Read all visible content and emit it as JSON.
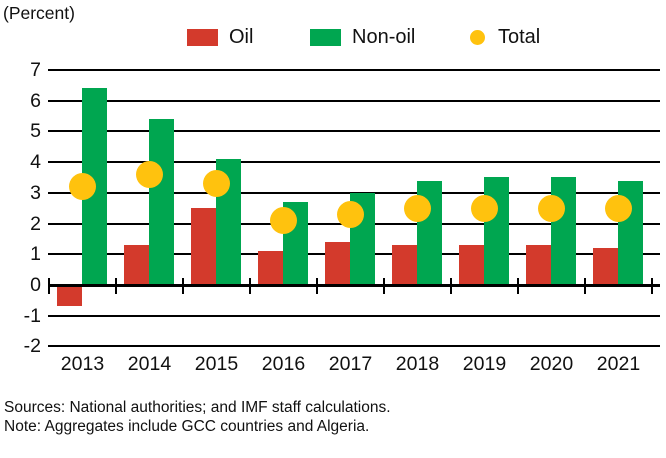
{
  "header": {
    "unit_label": "(Percent)"
  },
  "legend": [
    {
      "label": "Oil",
      "color": "#d33a2c",
      "marker": "square"
    },
    {
      "label": "Non-oil",
      "color": "#00a650",
      "marker": "square"
    },
    {
      "label": "Total",
      "color": "#ffc20e",
      "marker": "circle"
    }
  ],
  "chart_data": {
    "type": "bar",
    "title": "",
    "unit_label": "(Percent)",
    "categories": [
      "2013",
      "2014",
      "2015",
      "2016",
      "2017",
      "2018",
      "2019",
      "2020",
      "2021"
    ],
    "series": [
      {
        "name": "Oil",
        "type": "bar",
        "color": "#d33a2c",
        "values": [
          -0.7,
          1.3,
          2.5,
          1.1,
          1.4,
          1.3,
          1.3,
          1.3,
          1.2
        ]
      },
      {
        "name": "Non-oil",
        "type": "bar",
        "color": "#00a650",
        "values": [
          6.4,
          5.4,
          4.1,
          2.7,
          3.0,
          3.4,
          3.5,
          3.5,
          3.4
        ]
      },
      {
        "name": "Total",
        "type": "scatter",
        "color": "#ffc20e",
        "values": [
          3.2,
          3.6,
          3.3,
          2.1,
          2.3,
          2.5,
          2.5,
          2.5,
          2.5
        ]
      }
    ],
    "y_ticks": [
      7,
      6,
      5,
      4,
      3,
      2,
      1,
      0,
      -1,
      -2
    ],
    "ylim": [
      -2,
      7
    ],
    "grid": true,
    "gridline_color": "#000000",
    "legend_position": "top"
  },
  "footer": {
    "sources": "Sources: National authorities; and IMF staff calculations.",
    "note": "Note: Aggregates include GCC countries and Algeria."
  }
}
